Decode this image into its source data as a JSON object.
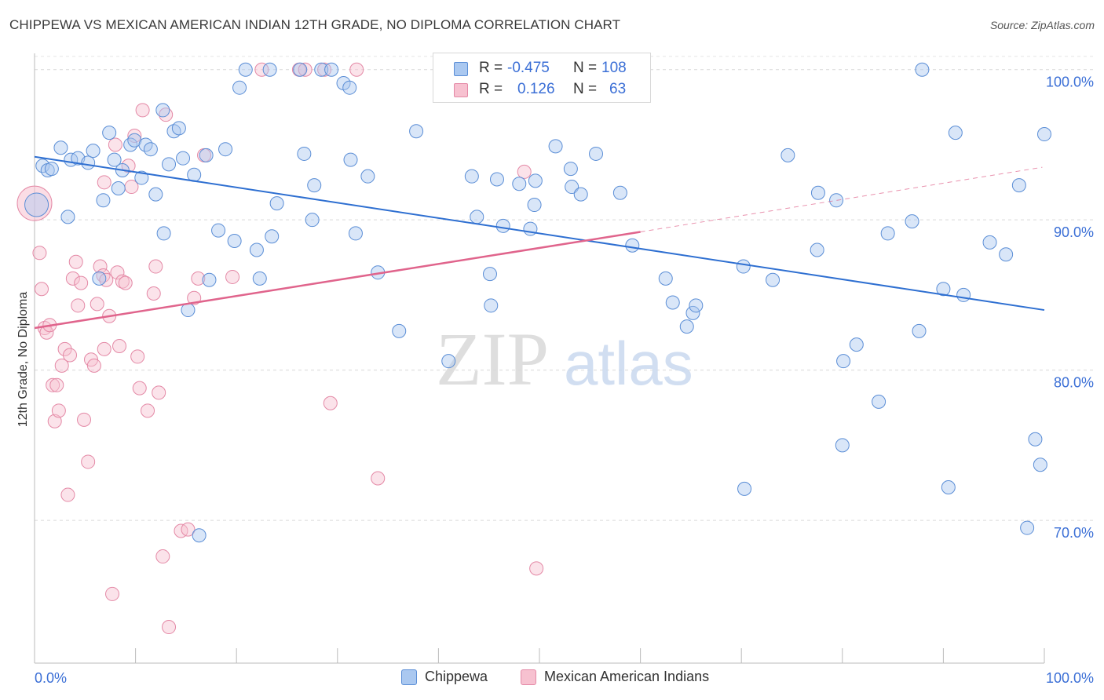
{
  "header": {
    "title": "CHIPPEWA VS MEXICAN AMERICAN INDIAN 12TH GRADE, NO DIPLOMA CORRELATION CHART",
    "source": "Source: ZipAtlas.com"
  },
  "watermark": {
    "zip": "ZIP",
    "atlas": "atlas"
  },
  "legend": {
    "r_label": "R =",
    "n_label": "N =",
    "rows": [
      {
        "r": "-0.475",
        "n": "108"
      },
      {
        "r": "0.126",
        "n": "63"
      }
    ]
  },
  "colors": {
    "blue_fill": "#aac8f0",
    "blue_stroke": "#5b8ed6",
    "blue_line": "#2e6fd1",
    "pink_fill": "#f7c1d0",
    "pink_stroke": "#e489a6",
    "pink_line": "#e0648c",
    "tick_text": "#3b6fd6"
  },
  "chart_data": {
    "type": "scatter",
    "title": "CHIPPEWA VS MEXICAN AMERICAN INDIAN 12TH GRADE, NO DIPLOMA CORRELATION CHART",
    "xlabel": "",
    "ylabel": "12th Grade, No Diploma",
    "xlim": [
      0,
      100
    ],
    "ylim": [
      60.5,
      101.5
    ],
    "x_tick_labels": [
      "0.0%",
      "100.0%"
    ],
    "y_ticks": [
      70,
      80,
      90,
      100
    ],
    "y_tick_labels": [
      "70.0%",
      "80.0%",
      "90.0%",
      "100.0%"
    ],
    "grid": true,
    "legend_position": "top-center",
    "series": [
      {
        "name": "Chippewa",
        "r": -0.475,
        "n": 108,
        "trend": {
          "x": [
            0,
            100
          ],
          "y": [
            94.2,
            84.0
          ],
          "dashed_after": null
        },
        "points": [
          [
            0.2,
            91.0
          ],
          [
            0.8,
            93.6
          ],
          [
            1.3,
            93.3
          ],
          [
            1.7,
            93.4
          ],
          [
            2.6,
            94.8
          ],
          [
            3.3,
            90.2
          ],
          [
            3.6,
            94.0
          ],
          [
            4.3,
            94.1
          ],
          [
            5.3,
            93.8
          ],
          [
            5.8,
            94.6
          ],
          [
            6.4,
            86.1
          ],
          [
            6.8,
            91.3
          ],
          [
            7.4,
            95.8
          ],
          [
            7.9,
            94.0
          ],
          [
            8.3,
            92.1
          ],
          [
            8.7,
            93.3
          ],
          [
            9.5,
            95.0
          ],
          [
            9.9,
            95.3
          ],
          [
            10.6,
            92.8
          ],
          [
            11.0,
            95.0
          ],
          [
            11.5,
            94.7
          ],
          [
            12.0,
            91.7
          ],
          [
            12.7,
            97.3
          ],
          [
            12.8,
            89.1
          ],
          [
            13.3,
            93.7
          ],
          [
            13.8,
            95.9
          ],
          [
            14.3,
            96.1
          ],
          [
            14.7,
            94.1
          ],
          [
            15.2,
            84.0
          ],
          [
            15.8,
            93.0
          ],
          [
            16.3,
            69.0
          ],
          [
            17.0,
            94.3
          ],
          [
            17.3,
            86.0
          ],
          [
            18.2,
            89.3
          ],
          [
            18.9,
            94.7
          ],
          [
            19.8,
            88.6
          ],
          [
            20.3,
            98.8
          ],
          [
            20.9,
            100.0
          ],
          [
            22.0,
            88.0
          ],
          [
            22.3,
            86.1
          ],
          [
            23.3,
            100.0
          ],
          [
            23.5,
            88.9
          ],
          [
            24.0,
            91.1
          ],
          [
            26.3,
            100.0
          ],
          [
            26.7,
            94.4
          ],
          [
            27.5,
            90.0
          ],
          [
            27.7,
            92.3
          ],
          [
            28.4,
            100.0
          ],
          [
            29.4,
            100.0
          ],
          [
            30.6,
            99.1
          ],
          [
            31.2,
            98.8
          ],
          [
            31.3,
            94.0
          ],
          [
            31.8,
            89.1
          ],
          [
            33.0,
            92.9
          ],
          [
            34.0,
            86.5
          ],
          [
            36.1,
            82.6
          ],
          [
            37.8,
            95.9
          ],
          [
            41.0,
            80.6
          ],
          [
            43.3,
            92.9
          ],
          [
            43.8,
            90.2
          ],
          [
            45.1,
            86.4
          ],
          [
            45.2,
            84.3
          ],
          [
            45.8,
            92.7
          ],
          [
            46.4,
            89.6
          ],
          [
            48.0,
            92.4
          ],
          [
            49.1,
            89.4
          ],
          [
            49.5,
            91.0
          ],
          [
            49.6,
            92.6
          ],
          [
            51.6,
            94.9
          ],
          [
            53.1,
            93.4
          ],
          [
            53.2,
            92.2
          ],
          [
            54.1,
            91.7
          ],
          [
            55.6,
            94.4
          ],
          [
            58.0,
            91.8
          ],
          [
            59.2,
            88.3
          ],
          [
            62.5,
            86.1
          ],
          [
            63.2,
            84.5
          ],
          [
            64.6,
            82.9
          ],
          [
            65.2,
            83.8
          ],
          [
            65.5,
            84.3
          ],
          [
            70.3,
            72.1
          ],
          [
            70.2,
            86.9
          ],
          [
            73.1,
            86.0
          ],
          [
            74.6,
            94.3
          ],
          [
            77.5,
            88.0
          ],
          [
            77.6,
            91.8
          ],
          [
            79.4,
            91.3
          ],
          [
            80.0,
            75.0
          ],
          [
            80.1,
            80.6
          ],
          [
            81.4,
            81.7
          ],
          [
            83.6,
            77.9
          ],
          [
            84.5,
            89.1
          ],
          [
            86.9,
            89.9
          ],
          [
            87.6,
            82.6
          ],
          [
            87.9,
            100.0
          ],
          [
            90.0,
            85.4
          ],
          [
            90.5,
            72.2
          ],
          [
            91.2,
            95.8
          ],
          [
            92.0,
            85.0
          ],
          [
            94.6,
            88.5
          ],
          [
            96.2,
            87.7
          ],
          [
            97.5,
            92.3
          ],
          [
            98.3,
            69.5
          ],
          [
            99.1,
            75.4
          ],
          [
            99.6,
            73.7
          ],
          [
            100.0,
            95.7
          ]
        ]
      },
      {
        "name": "Mexican American Indians",
        "r": 0.126,
        "n": 63,
        "trend": {
          "x": [
            0,
            60,
            99.8
          ],
          "y": [
            82.8,
            89.2,
            93.5
          ],
          "dashed_after": 60
        },
        "points": [
          [
            0.0,
            91.1
          ],
          [
            0.5,
            87.8
          ],
          [
            0.7,
            85.4
          ],
          [
            1.0,
            82.8
          ],
          [
            1.2,
            82.5
          ],
          [
            1.5,
            83.0
          ],
          [
            1.8,
            79.0
          ],
          [
            2.0,
            76.6
          ],
          [
            2.2,
            79.0
          ],
          [
            2.4,
            77.3
          ],
          [
            2.7,
            80.3
          ],
          [
            3.0,
            81.4
          ],
          [
            3.3,
            71.7
          ],
          [
            3.5,
            81.0
          ],
          [
            3.8,
            86.1
          ],
          [
            4.1,
            87.2
          ],
          [
            4.3,
            84.3
          ],
          [
            4.6,
            85.8
          ],
          [
            4.9,
            76.7
          ],
          [
            5.3,
            73.9
          ],
          [
            5.6,
            80.7
          ],
          [
            5.9,
            80.3
          ],
          [
            6.2,
            84.4
          ],
          [
            6.5,
            86.9
          ],
          [
            6.8,
            86.3
          ],
          [
            6.9,
            92.5
          ],
          [
            7.1,
            86.0
          ],
          [
            7.4,
            83.6
          ],
          [
            7.7,
            65.1
          ],
          [
            8.0,
            95.0
          ],
          [
            8.2,
            86.5
          ],
          [
            8.4,
            81.6
          ],
          [
            8.7,
            85.9
          ],
          [
            9.0,
            85.8
          ],
          [
            9.3,
            93.6
          ],
          [
            9.6,
            92.2
          ],
          [
            9.9,
            95.6
          ],
          [
            10.2,
            80.9
          ],
          [
            10.4,
            78.8
          ],
          [
            10.7,
            97.3
          ],
          [
            11.2,
            77.3
          ],
          [
            11.8,
            85.1
          ],
          [
            12.0,
            86.9
          ],
          [
            12.3,
            78.5
          ],
          [
            12.7,
            67.6
          ],
          [
            13.0,
            97.0
          ],
          [
            13.3,
            62.9
          ],
          [
            14.5,
            69.3
          ],
          [
            15.2,
            69.4
          ],
          [
            16.2,
            86.1
          ],
          [
            16.8,
            94.3
          ],
          [
            19.6,
            86.2
          ],
          [
            22.5,
            100.0
          ],
          [
            26.2,
            100.0
          ],
          [
            26.8,
            100.0
          ],
          [
            28.7,
            100.0
          ],
          [
            29.3,
            77.8
          ],
          [
            31.9,
            100.0
          ],
          [
            34.0,
            72.8
          ],
          [
            48.5,
            93.2
          ],
          [
            49.7,
            66.8
          ],
          [
            15.8,
            84.8
          ],
          [
            6.9,
            81.4
          ]
        ]
      }
    ]
  },
  "bottom_legend": [
    {
      "label": "Chippewa"
    },
    {
      "label": "Mexican American Indians"
    }
  ]
}
